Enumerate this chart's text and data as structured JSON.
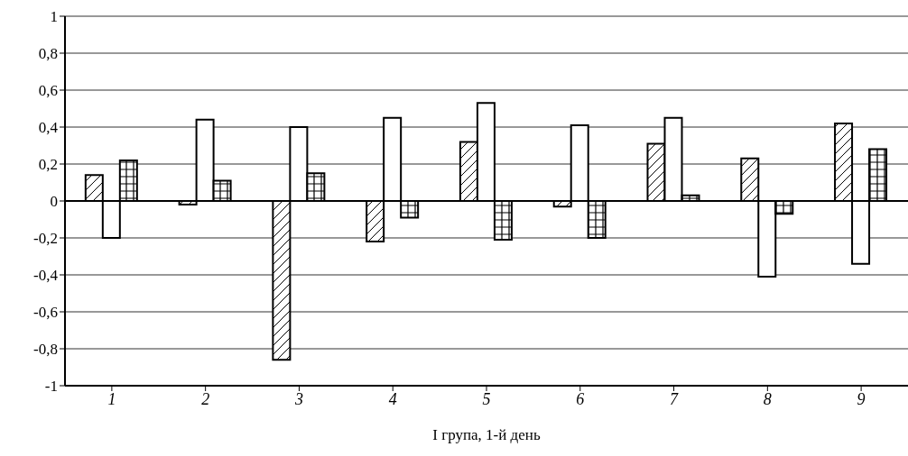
{
  "chart_data": {
    "type": "bar",
    "xlabel": "I група, 1-й день",
    "categories": [
      "1",
      "2",
      "3",
      "4",
      "5",
      "6",
      "7",
      "8",
      "9"
    ],
    "series": [
      {
        "color": "#000000",
        "values": [
          0.14,
          -0.02,
          -0.86,
          -0.22,
          0.32,
          -0.03,
          0.31,
          0.23,
          0.42
        ]
      },
      {
        "color": "#ffffff",
        "values": [
          -0.2,
          0.44,
          0.4,
          0.45,
          0.53,
          0.41,
          0.45,
          -0.41,
          -0.34
        ]
      },
      {
        "color": "#000000",
        "values": [
          0.22,
          0.11,
          0.15,
          -0.09,
          -0.21,
          -0.2,
          0.03,
          -0.07,
          0.28
        ]
      }
    ],
    "ylim": [
      -1,
      1
    ],
    "yticks": [
      -1,
      {
        "value": -0.8,
        "label": "-0,8"
      },
      {
        "value": -0.6,
        "label": "-0,6"
      },
      {
        "value": -0.4,
        "label": "-0,4"
      },
      {
        "value": -0.2,
        "label": "-0,2"
      },
      0,
      {
        "value": 0.2,
        "label": "0,2"
      },
      {
        "value": 0.4,
        "label": "0,4"
      },
      {
        "value": 0.6,
        "label": "0,6"
      },
      {
        "value": 0.8,
        "label": "0,8"
      },
      1
    ],
    "grid": "y",
    "legend": false
  }
}
